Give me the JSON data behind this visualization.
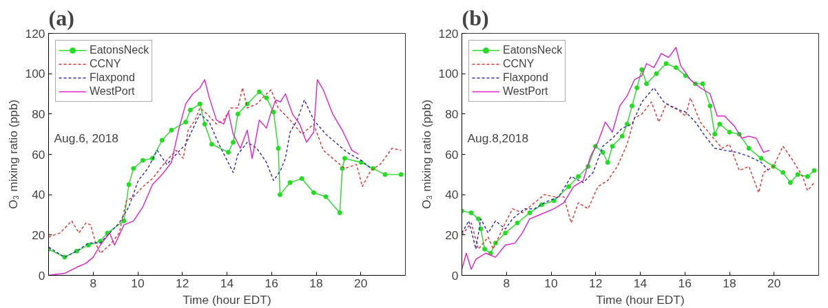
{
  "chart_data": [
    {
      "type": "line",
      "title": "(a)",
      "xlabel": "Time (hour EDT)",
      "ylabel": "O₃ mixing ratio (ppb)",
      "xlim": [
        6,
        22
      ],
      "xticks": [
        8,
        10,
        12,
        14,
        16,
        18,
        20
      ],
      "ylim": [
        0,
        120
      ],
      "yticks": [
        0,
        20,
        40,
        60,
        80,
        100,
        120
      ],
      "grid": false,
      "legend": "top left",
      "annotations": [
        "Aug.6, 2018"
      ],
      "series": [
        {
          "name": "EatonsNeck",
          "color": "#22dd22",
          "marker": "circle",
          "line_style": "solid",
          "x": [
            6.0,
            6.72,
            7.26,
            7.79,
            8.32,
            8.64,
            9.38,
            9.6,
            9.81,
            10.23,
            10.66,
            11.09,
            11.51,
            12.15,
            12.36,
            12.79,
            13.0,
            13.32,
            14.06,
            14.28,
            14.49,
            14.91,
            15.45,
            15.77,
            16.09,
            16.3,
            16.38,
            16.83,
            17.36,
            17.89,
            18.43,
            19.06,
            19.17,
            19.28,
            20.02,
            20.55,
            21.09,
            21.81
          ],
          "values": [
            13,
            9,
            12,
            15,
            17,
            21,
            27,
            45,
            53,
            57,
            58,
            67,
            72,
            76,
            82,
            85,
            75,
            65,
            61,
            66,
            80,
            85,
            91,
            88,
            81,
            63,
            40,
            46,
            48,
            41,
            39,
            31,
            53,
            58,
            56,
            53,
            50,
            50
          ]
        },
        {
          "name": "CCNY",
          "color": "#e03030",
          "marker": "none",
          "line_style": "dashed",
          "x": [
            6.0,
            6.51,
            7.04,
            7.36,
            7.68,
            7.89,
            8.11,
            8.32,
            8.64,
            8.74,
            9.17,
            9.49,
            9.81,
            10.23,
            10.66,
            11.3,
            11.72,
            12.04,
            12.26,
            12.57,
            12.79,
            13.11,
            13.53,
            13.85,
            14.17,
            14.49,
            14.7,
            14.91,
            15.34,
            15.77,
            15.98,
            16.3,
            16.83,
            17.36,
            17.89,
            18.32,
            18.74,
            19.28,
            19.81,
            20.07,
            20.45,
            20.87,
            21.4,
            21.81
          ],
          "values": [
            19,
            21,
            27,
            21,
            26,
            25,
            16,
            11,
            14,
            15,
            21,
            37,
            39,
            44,
            48,
            57,
            62,
            58,
            72,
            77,
            83,
            80,
            75,
            77,
            83,
            83,
            93,
            83,
            85,
            90,
            92,
            83,
            77,
            70,
            75,
            62,
            58,
            53,
            55,
            44,
            52,
            55,
            63,
            62
          ]
        },
        {
          "name": "Flaxpond",
          "color": "#2a2ab0",
          "marker": "none",
          "line_style": "dashed",
          "x": [
            6.0,
            6.72,
            7.26,
            7.79,
            8.32,
            8.74,
            9.17,
            9.6,
            10.02,
            10.45,
            10.87,
            11.3,
            11.72,
            12.15,
            12.57,
            12.79,
            13.21,
            13.64,
            13.96,
            14.28,
            14.49,
            14.91,
            15.34,
            15.77,
            16.09,
            16.4,
            16.62,
            16.83,
            17.15,
            17.47,
            17.89,
            18.43,
            18.96,
            19.38,
            20.02,
            20.45
          ],
          "values": [
            14,
            9,
            12,
            16,
            16,
            21,
            26,
            34,
            47,
            53,
            62,
            55,
            60,
            65,
            75,
            80,
            76,
            65,
            58,
            51,
            60,
            66,
            63,
            56,
            47,
            52,
            58,
            71,
            77,
            87,
            77,
            70,
            65,
            61,
            57,
            53
          ]
        },
        {
          "name": "WestPort",
          "color": "#e020c8",
          "marker": "none",
          "line_style": "solid",
          "x": [
            6.0,
            6.72,
            7.26,
            7.68,
            8.0,
            8.32,
            8.74,
            8.96,
            9.38,
            9.81,
            10.23,
            10.66,
            11.09,
            11.51,
            11.83,
            12.15,
            12.47,
            12.79,
            13.0,
            13.21,
            13.53,
            13.85,
            14.06,
            14.28,
            14.6,
            14.91,
            15.13,
            15.45,
            15.77,
            15.98,
            16.19,
            16.4,
            16.62,
            16.94,
            17.26,
            17.57,
            17.89,
            18.05,
            18.32,
            18.74,
            19.17,
            19.6,
            19.91
          ],
          "values": [
            0,
            1,
            4,
            6,
            9,
            15,
            21,
            15,
            25,
            27,
            34,
            45,
            50,
            56,
            72,
            85,
            90,
            93,
            97,
            88,
            77,
            75,
            81,
            70,
            63,
            72,
            58,
            77,
            73,
            81,
            87,
            86,
            90,
            80,
            75,
            66,
            71,
            97,
            92,
            80,
            72,
            62,
            60
          ]
        }
      ]
    },
    {
      "type": "line",
      "title": "(b)",
      "xlabel": "Time (hour EDT)",
      "ylabel": "O₃ mixing ratio (ppb)",
      "xlim": [
        6,
        22
      ],
      "xticks": [
        8,
        10,
        12,
        14,
        16,
        18,
        20
      ],
      "ylim": [
        0,
        120
      ],
      "yticks": [
        0,
        20,
        40,
        60,
        80,
        100,
        120
      ],
      "grid": false,
      "legend": "top left",
      "annotations": [
        "Aug.8,2018"
      ],
      "series": [
        {
          "name": "EatonsNeck",
          "color": "#22dd22",
          "marker": "circle",
          "line_style": "solid",
          "x": [
            6.0,
            6.42,
            6.74,
            6.85,
            7.02,
            7.29,
            7.51,
            7.95,
            8.49,
            9.04,
            9.58,
            10.13,
            10.79,
            11.22,
            11.66,
            11.99,
            12.32,
            12.54,
            12.75,
            13.19,
            13.41,
            13.63,
            13.85,
            14.07,
            14.28,
            14.72,
            15.16,
            15.6,
            16.03,
            16.47,
            16.8,
            17.13,
            17.34,
            17.56,
            18.0,
            18.44,
            18.87,
            19.42,
            19.97,
            20.4,
            20.73,
            21.06,
            21.5,
            21.8
          ],
          "values": [
            32,
            31,
            28,
            23,
            13,
            11,
            16,
            21,
            26,
            31,
            35,
            37,
            44,
            49,
            54,
            64,
            61,
            56,
            64,
            69,
            75,
            84,
            93,
            102,
            95,
            100,
            105,
            103,
            99,
            95,
            95,
            84,
            70,
            75,
            71,
            70,
            63,
            58,
            54,
            51,
            46,
            50,
            49,
            52
          ]
        },
        {
          "name": "CCNY",
          "color": "#e03030",
          "marker": "none",
          "line_style": "dashed",
          "x": [
            6.0,
            6.42,
            6.74,
            7.18,
            7.4,
            7.95,
            8.27,
            8.71,
            9.26,
            9.69,
            10.13,
            10.57,
            10.9,
            11.22,
            11.66,
            12.1,
            12.54,
            12.97,
            13.41,
            13.74,
            14.07,
            14.5,
            14.83,
            15.16,
            15.6,
            16.03,
            16.25,
            16.69,
            17.13,
            17.67,
            18.0,
            18.44,
            18.87,
            19.31,
            19.53,
            19.97,
            20.4,
            20.84,
            21.28,
            21.5,
            21.8
          ],
          "values": [
            20,
            26,
            13,
            19,
            13,
            26,
            33,
            31,
            36,
            40,
            39,
            39,
            26,
            36,
            33,
            44,
            47,
            54,
            65,
            78,
            80,
            86,
            76,
            85,
            83,
            79,
            88,
            76,
            70,
            63,
            65,
            52,
            54,
            41,
            51,
            54,
            64,
            57,
            49,
            42,
            46
          ]
        },
        {
          "name": "Flaxpond",
          "color": "#2a2ab0",
          "marker": "none",
          "line_style": "dashed",
          "x": [
            6.0,
            6.31,
            6.63,
            6.85,
            7.18,
            7.51,
            7.95,
            8.27,
            8.82,
            9.26,
            9.69,
            10.35,
            10.9,
            11.44,
            11.88,
            12.32,
            12.75,
            13.19,
            13.63,
            14.07,
            14.61,
            15.05,
            15.49,
            16.03,
            16.47,
            16.91,
            17.34,
            17.78,
            18.33,
            18.87,
            19.42,
            19.75
          ],
          "values": [
            21,
            27,
            13,
            28,
            21,
            27,
            23,
            28,
            33,
            33,
            36,
            39,
            49,
            46,
            51,
            64,
            68,
            73,
            75,
            86,
            93,
            86,
            83,
            81,
            76,
            69,
            63,
            62,
            61,
            59,
            56,
            52
          ]
        },
        {
          "name": "WestPort",
          "color": "#e020c8",
          "marker": "none",
          "line_style": "solid",
          "x": [
            6.0,
            6.2,
            6.42,
            6.63,
            7.07,
            7.51,
            7.95,
            8.38,
            8.71,
            9.04,
            9.48,
            10.13,
            10.57,
            11.01,
            11.44,
            11.77,
            12.1,
            12.43,
            12.75,
            13.08,
            13.41,
            13.74,
            14.07,
            14.28,
            14.61,
            14.94,
            15.27,
            15.6,
            15.81,
            16.25,
            16.69,
            17.13,
            17.45,
            17.78,
            18.22,
            18.55,
            18.87,
            19.2,
            19.53,
            19.8
          ],
          "values": [
            3,
            11,
            3,
            8,
            11,
            9,
            15,
            16,
            21,
            28,
            30,
            33,
            36,
            44,
            47,
            59,
            66,
            76,
            71,
            84,
            89,
            97,
            99,
            105,
            103,
            110,
            108,
            113,
            104,
            97,
            93,
            90,
            79,
            79,
            74,
            68,
            69,
            68,
            61,
            62
          ]
        }
      ]
    }
  ]
}
